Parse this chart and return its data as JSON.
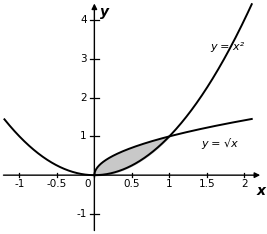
{
  "xlim": [
    -1.25,
    2.25
  ],
  "ylim": [
    -1.5,
    4.5
  ],
  "xticks": [
    -1,
    -0.5,
    0,
    0.5,
    1,
    1.5,
    2
  ],
  "yticks": [
    -1,
    1,
    2,
    3,
    4
  ],
  "xtick_labels": [
    "-1",
    "-0.5",
    "0",
    "0.5",
    "1",
    "1.5",
    "2"
  ],
  "ytick_labels": [
    "-1",
    "1",
    "2",
    "3",
    "4"
  ],
  "shade_color": "#c8c8c8",
  "curve_color": "#000000",
  "axis_color": "#000000",
  "label_x2": "y = x²",
  "label_sqrt": "y = √x",
  "xlabel": "x",
  "ylabel": "y",
  "figsize": [
    2.67,
    2.34
  ],
  "dpi": 100,
  "tick_size": 0.06,
  "tick_fontsize": 7.5,
  "label_fontsize": 10
}
